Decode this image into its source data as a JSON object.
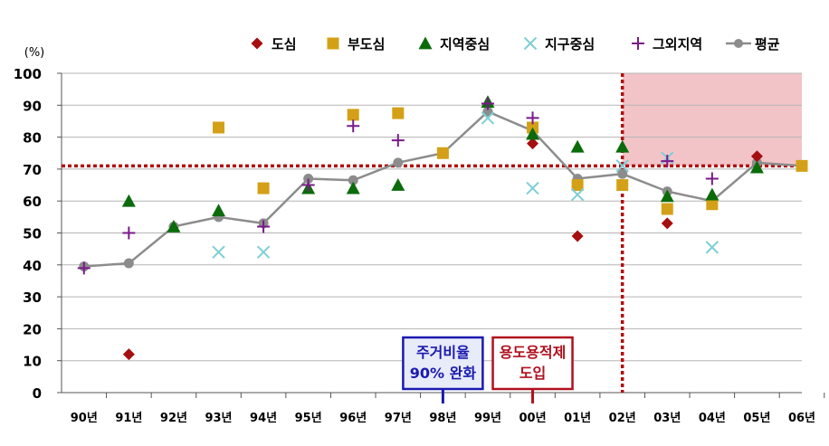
{
  "chart_data": {
    "type": "scatter",
    "title": "",
    "xlabel": "",
    "ylabel": "(%)",
    "ylim": [
      0,
      100
    ],
    "yticks": [
      0,
      10,
      20,
      30,
      40,
      50,
      60,
      70,
      80,
      90,
      100
    ],
    "grid": "horizontal",
    "legend_position": "top",
    "categories": [
      "90년",
      "91년",
      "92년",
      "93년",
      "94년",
      "95년",
      "96년",
      "97년",
      "98년",
      "99년",
      "00년",
      "01년",
      "02년",
      "03년",
      "04년",
      "05년",
      "06년"
    ],
    "series": [
      {
        "name": "도심",
        "marker": "diamond",
        "color": "#a50f0f",
        "values": [
          null,
          12,
          null,
          null,
          null,
          null,
          null,
          null,
          null,
          null,
          78,
          49,
          null,
          53,
          null,
          74,
          null
        ]
      },
      {
        "name": "부도심",
        "marker": "square",
        "color": "#d4a017",
        "values": [
          null,
          null,
          null,
          83,
          64,
          null,
          87,
          87.5,
          75,
          null,
          83,
          65,
          65,
          57.5,
          59,
          null,
          71
        ]
      },
      {
        "name": "지역중심",
        "marker": "triangle",
        "color": "#0b6b0b",
        "values": [
          null,
          60,
          52,
          57,
          null,
          64,
          64,
          65,
          null,
          91,
          81,
          77,
          77,
          61.5,
          62,
          70.5,
          null
        ]
      },
      {
        "name": "지구중심",
        "marker": "x",
        "color": "#7ecfd4",
        "values": [
          null,
          null,
          null,
          44,
          44,
          null,
          null,
          null,
          null,
          86,
          64,
          62,
          71,
          73.5,
          45.5,
          null,
          null
        ]
      },
      {
        "name": "그외지역",
        "marker": "plus",
        "color": "#7a1a8a",
        "values": [
          39,
          50,
          null,
          null,
          52,
          65,
          83.5,
          79,
          null,
          90.5,
          86,
          null,
          null,
          72.5,
          67,
          null,
          null
        ]
      },
      {
        "name": "평균",
        "marker": "line",
        "color": "#8c8c8c",
        "values": [
          39.5,
          40.5,
          52,
          55,
          53,
          67,
          66.5,
          72,
          75,
          88,
          82,
          67,
          68.5,
          63,
          60,
          72,
          71
        ]
      }
    ],
    "reference_line_y": 71,
    "reference_line_x_category": "02년",
    "annotations": [
      {
        "text_lines": [
          "주거비율",
          "90% 완화"
        ],
        "category": "98년",
        "color": "#1a1ab0"
      },
      {
        "text_lines": [
          "용도용적제",
          "도입"
        ],
        "category": "00년",
        "color": "#b0101e"
      }
    ]
  }
}
